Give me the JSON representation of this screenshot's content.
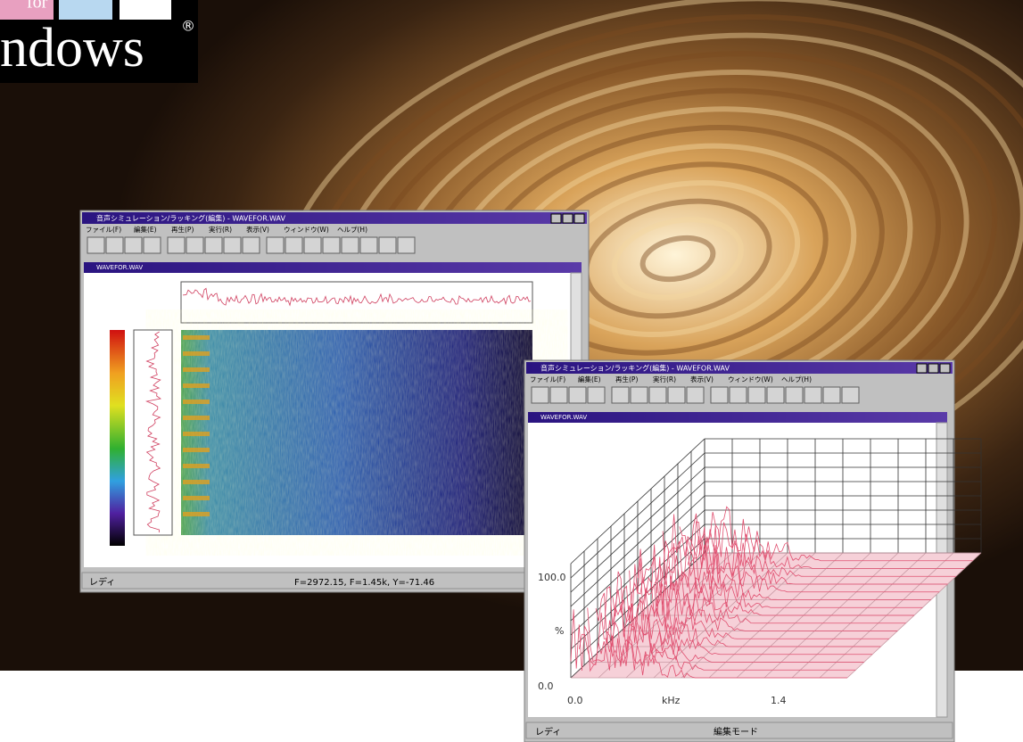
{
  "logo": {
    "top": "for",
    "text": "ndows",
    "mark": "®"
  },
  "window1": {
    "title": "音声シミュレーション/ラッキング(編集) - WAVEFOR.WAV",
    "menu": [
      "ファイル(F)",
      "編集(E)",
      "再生(P)",
      "実行(R)",
      "表示(V)",
      "ウィンドウ(W)",
      "ヘルプ(H)"
    ],
    "child_title": "WAVEFOR.WAV",
    "status": [
      "レディ",
      "F=2972.15, F=1.45k, Y=-71.46"
    ]
  },
  "window2": {
    "title": "音声シミュレーション/ラッキング(編集) - WAVEFOR.WAV",
    "menu": [
      "ファイル(F)",
      "編集(E)",
      "再生(P)",
      "実行(R)",
      "表示(V)",
      "ウィンドウ(W)",
      "ヘルプ(H)"
    ],
    "child_title": "WAVEFOR.WAV",
    "axis": {
      "y_top": "100.0",
      "y_mid": "%",
      "y_bottom": "0.0",
      "x_left": "0.0",
      "x_mid": "kHz",
      "x_right": "1.4"
    },
    "status": [
      "レディ",
      "編集モード"
    ]
  }
}
